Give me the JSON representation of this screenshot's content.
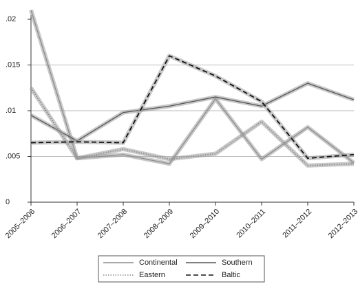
{
  "chart_data": {
    "type": "line",
    "categories": [
      "2005–2006",
      "2006–2007",
      "2007–2008",
      "2008–2009",
      "2009–2010",
      "2010–2011",
      "2011–2012",
      "2012–2013"
    ],
    "series": [
      {
        "name": "Continental",
        "color": "#8c8c8c",
        "dash": "solid",
        "values": [
          0.021,
          0.0048,
          0.0052,
          0.0042,
          0.0113,
          0.0047,
          0.0082,
          0.0043
        ]
      },
      {
        "name": "Southern",
        "color": "#555555",
        "dash": "solid",
        "values": [
          0.0095,
          0.0067,
          0.0098,
          0.0105,
          0.0115,
          0.0105,
          0.013,
          0.0112
        ]
      },
      {
        "name": "Eastern",
        "color": "#8c8c8c",
        "dash": "dotted",
        "values": [
          0.0125,
          0.0048,
          0.0058,
          0.0047,
          0.0053,
          0.0088,
          0.004,
          0.0042
        ]
      },
      {
        "name": "Baltic",
        "color": "#111111",
        "dash": "dashed",
        "values": [
          0.0065,
          0.0066,
          0.0065,
          0.016,
          0.0138,
          0.011,
          0.0048,
          0.0052
        ]
      }
    ],
    "ylim": [
      0,
      0.02
    ],
    "yticks": [
      0,
      {
        "value": 0.005,
        "label": ".005"
      },
      {
        "value": 0.01,
        "label": ".01"
      },
      {
        "value": 0.015,
        "label": ".015"
      },
      {
        "value": 0.02,
        "label": ".02"
      }
    ],
    "grid": true,
    "legend": "bottom"
  }
}
